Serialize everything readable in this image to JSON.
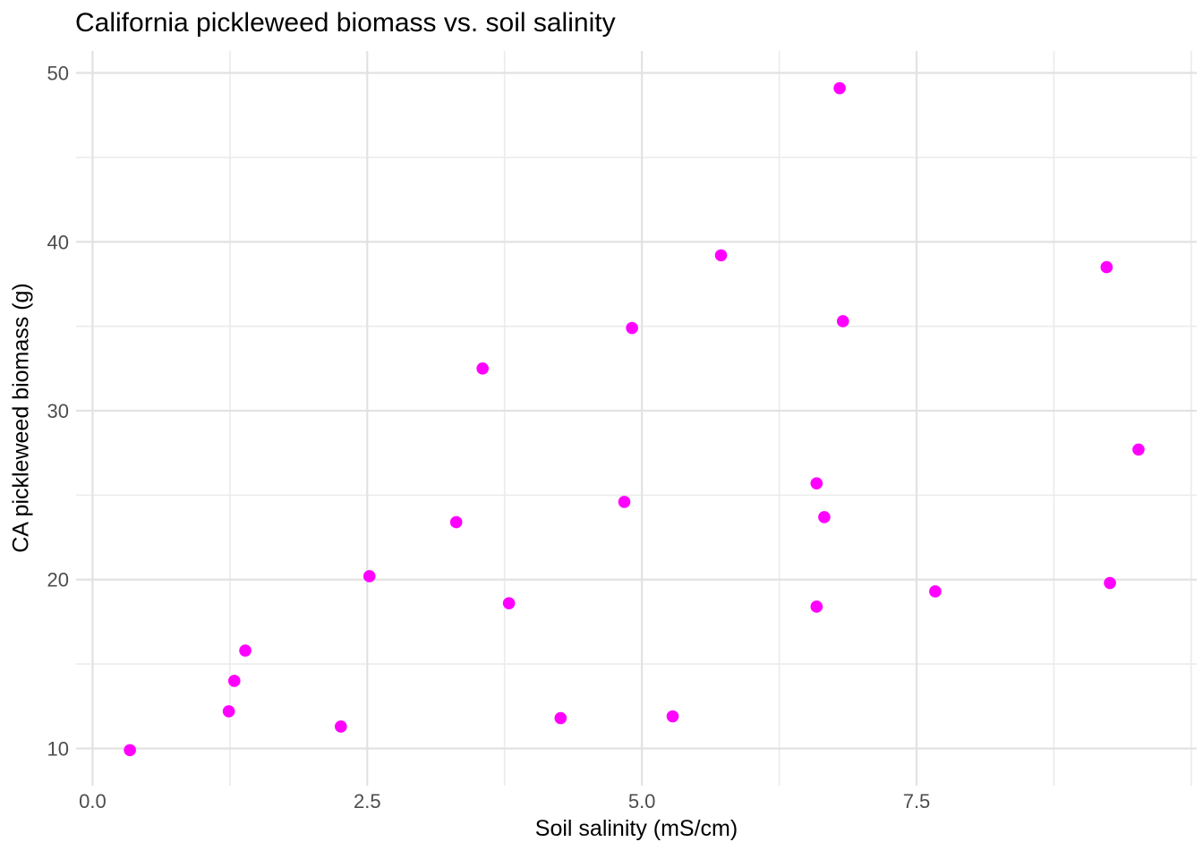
{
  "chart_data": {
    "type": "scatter",
    "title": "California pickleweed biomass vs. soil salinity",
    "xlabel": "Soil salinity (mS/cm)",
    "ylabel": "CA pickleweed biomass (g)",
    "xlim": [
      -0.15,
      10.05
    ],
    "ylim": [
      7.8,
      51.3
    ],
    "x_ticks": {
      "values": [
        0,
        2.5,
        5,
        7.5
      ],
      "labels": [
        "0.0",
        "2.5",
        "5.0",
        "7.5"
      ]
    },
    "x_minor": [
      1.25,
      3.75,
      6.25,
      8.75,
      10.0
    ],
    "y_ticks": {
      "values": [
        10,
        20,
        30,
        40,
        50
      ],
      "labels": [
        "10",
        "20",
        "30",
        "40",
        "50"
      ]
    },
    "y_minor": [
      15,
      25,
      35,
      45
    ],
    "grid": true,
    "legend": "none",
    "point_color": "#FF00FF",
    "point_radius": 6.8,
    "grid_major_color": "#E2E2E2",
    "grid_minor_color": "#EBEBEB",
    "tick_label_color": "#4D4D4D",
    "text_color": "#000000",
    "points": [
      [
        0.34,
        9.9
      ],
      [
        1.24,
        12.2
      ],
      [
        1.29,
        14.0
      ],
      [
        1.39,
        15.8
      ],
      [
        2.26,
        11.3
      ],
      [
        2.52,
        20.2
      ],
      [
        3.31,
        23.4
      ],
      [
        3.55,
        32.5
      ],
      [
        3.79,
        18.6
      ],
      [
        4.26,
        11.8
      ],
      [
        4.84,
        24.6
      ],
      [
        4.91,
        34.9
      ],
      [
        5.28,
        11.9
      ],
      [
        5.72,
        39.2
      ],
      [
        6.59,
        25.7
      ],
      [
        6.66,
        23.7
      ],
      [
        6.59,
        18.4
      ],
      [
        6.8,
        49.1
      ],
      [
        6.83,
        35.3
      ],
      [
        7.67,
        19.3
      ],
      [
        9.23,
        38.5
      ],
      [
        9.26,
        19.8
      ],
      [
        9.52,
        27.7
      ]
    ]
  }
}
